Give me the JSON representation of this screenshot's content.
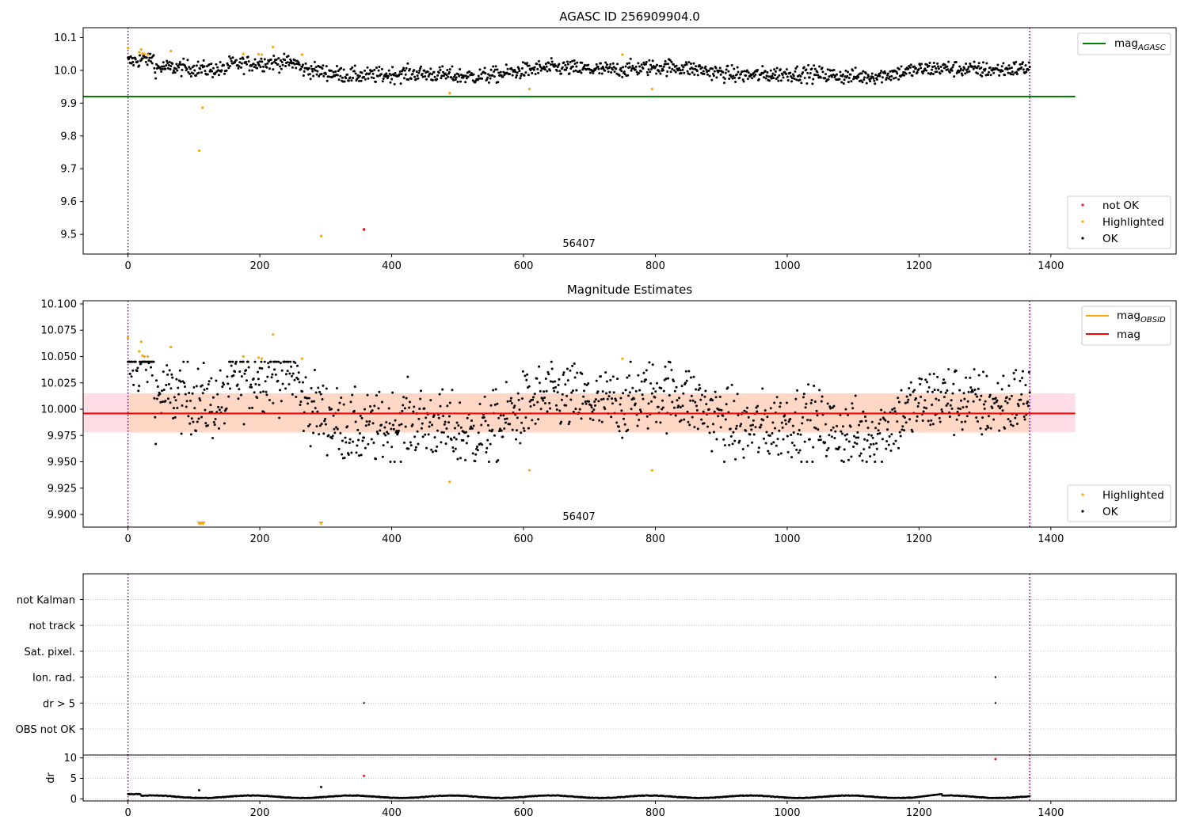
{
  "colors": {
    "ok": "#000000",
    "not_ok": "#e41a1c",
    "highlighted": "#ffa500",
    "mag_agasc": "#008000",
    "mag": "#ff0000",
    "mag_obsid": "#ffa500",
    "band_inner": "#ffd7c4",
    "band_outer": "#ffdde4",
    "vline": "#800080",
    "grid": "#b0b0b0"
  },
  "chart_data": [
    {
      "type": "scatter",
      "title": "AGASC ID 256909904.0",
      "annotation": "56407",
      "xlim": [
        -68,
        1590
      ],
      "ylim": [
        9.44,
        10.13
      ],
      "xticks": [
        0,
        200,
        400,
        600,
        800,
        1000,
        1200,
        1400
      ],
      "yticks": [
        9.5,
        9.6,
        9.7,
        9.8,
        9.9,
        10.0,
        10.1
      ],
      "yticklabels": [
        "9.5",
        "9.6",
        "9.7",
        "9.8",
        "9.9",
        "10.0",
        "10.1"
      ],
      "vlines": [
        0,
        1368
      ],
      "lines": [
        {
          "name": "mag",
          "name_sub": "AGASC",
          "y": 9.92,
          "x": [
            -68,
            1437
          ],
          "color": "#008000"
        }
      ],
      "scatter_legend": [
        {
          "name": "not OK",
          "color": "#e41a1c"
        },
        {
          "name": "Highlighted",
          "color": "#ffa500"
        },
        {
          "name": "OK",
          "color": "#000000"
        }
      ],
      "series_summary": {
        "ok_x_range": [
          0,
          1368
        ],
        "ok_y_center": 10.0,
        "ok_y_spread": 0.04,
        "ok_count_approx": 1300
      },
      "highlighted_points": [
        {
          "x": 0,
          "y": 10.068
        },
        {
          "x": 17,
          "y": 10.055
        },
        {
          "x": 20,
          "y": 10.064
        },
        {
          "x": 22,
          "y": 10.051
        },
        {
          "x": 25,
          "y": 10.05
        },
        {
          "x": 30,
          "y": 10.048
        },
        {
          "x": 65,
          "y": 10.059
        },
        {
          "x": 108,
          "y": 9.755
        },
        {
          "x": 113,
          "y": 9.886
        },
        {
          "x": 175,
          "y": 10.05
        },
        {
          "x": 198,
          "y": 10.049
        },
        {
          "x": 203,
          "y": 10.048
        },
        {
          "x": 220,
          "y": 10.071
        },
        {
          "x": 264,
          "y": 10.048
        },
        {
          "x": 293,
          "y": 9.495
        },
        {
          "x": 488,
          "y": 9.931
        },
        {
          "x": 609,
          "y": 9.943
        },
        {
          "x": 750,
          "y": 10.048
        },
        {
          "x": 795,
          "y": 9.943
        }
      ],
      "not_ok_points": [
        {
          "x": 358,
          "y": 9.515
        }
      ]
    },
    {
      "type": "scatter",
      "title": "Magnitude Estimates",
      "annotation": "56407",
      "xlim": [
        -68,
        1590
      ],
      "ylim": [
        9.888,
        10.103
      ],
      "xticks": [
        0,
        200,
        400,
        600,
        800,
        1000,
        1200,
        1400
      ],
      "yticks": [
        9.9,
        9.925,
        9.95,
        9.975,
        10.0,
        10.025,
        10.05,
        10.075,
        10.1
      ],
      "yticklabels": [
        "9.900",
        "9.925",
        "9.950",
        "9.975",
        "10.000",
        "10.025",
        "10.050",
        "10.075",
        "10.100"
      ],
      "vlines": [
        0,
        1368
      ],
      "mag_line": {
        "name": "mag",
        "y": 9.996,
        "x": [
          -68,
          1437
        ]
      },
      "mag_obsid_line": {
        "name": "mag",
        "name_sub": "OBSID"
      },
      "band_outer": {
        "y": [
          9.978,
          10.015
        ],
        "x": [
          -68,
          1437
        ]
      },
      "band_inner": {
        "y": [
          9.978,
          10.015
        ],
        "x": [
          0,
          1368
        ]
      },
      "scatter_legend": [
        {
          "name": "Highlighted",
          "color": "#ffa500"
        },
        {
          "name": "OK",
          "color": "#000000"
        }
      ],
      "series_summary": {
        "ok_x_range": [
          0,
          1368
        ],
        "ok_y_center": 9.996,
        "ok_y_spread": 0.04
      },
      "highlighted_points": [
        {
          "x": 0,
          "y": 10.068
        },
        {
          "x": 17,
          "y": 10.055
        },
        {
          "x": 20,
          "y": 10.064
        },
        {
          "x": 22,
          "y": 10.051
        },
        {
          "x": 25,
          "y": 10.05
        },
        {
          "x": 30,
          "y": 10.05
        },
        {
          "x": 65,
          "y": 10.059
        },
        {
          "x": 175,
          "y": 10.05
        },
        {
          "x": 198,
          "y": 10.049
        },
        {
          "x": 203,
          "y": 10.048
        },
        {
          "x": 220,
          "y": 10.071
        },
        {
          "x": 264,
          "y": 10.048
        },
        {
          "x": 488,
          "y": 9.931
        },
        {
          "x": 609,
          "y": 9.942
        },
        {
          "x": 750,
          "y": 10.048
        },
        {
          "x": 795,
          "y": 9.942
        }
      ],
      "off_axis_markers": [
        {
          "x": 108
        },
        {
          "x": 111
        },
        {
          "x": 114
        },
        {
          "x": 293
        }
      ]
    },
    {
      "type": "scatter",
      "title": "",
      "xlim": [
        -68,
        1590
      ],
      "categories": [
        "OBS not OK",
        "dr > 5",
        "Ion. rad.",
        "Sat. pixel.",
        "not track",
        "not Kalman"
      ],
      "vlines": [
        0,
        1368
      ],
      "flag_points": [
        {
          "category": "dr > 5",
          "x": 358
        },
        {
          "category": "dr > 5",
          "x": 1316
        },
        {
          "category": "Ion. rad.",
          "x": 1316
        }
      ]
    },
    {
      "type": "scatter",
      "title": "",
      "ylabel": "dr",
      "xlim": [
        -68,
        1590
      ],
      "ylim": [
        -0.5,
        10.7
      ],
      "xticks": [
        0,
        200,
        400,
        600,
        800,
        1000,
        1200,
        1400
      ],
      "yticks": [
        0,
        5,
        10
      ],
      "yticklabels": [
        "0",
        "5",
        "10"
      ],
      "vlines": [
        0,
        1368
      ],
      "series_summary": {
        "ok_x_range": [
          0,
          1368
        ],
        "ok_y_range": [
          0.2,
          1.3
        ]
      },
      "points": [
        {
          "x": 108,
          "y": 2.1,
          "color": "#000000"
        },
        {
          "x": 293,
          "y": 2.9,
          "color": "#000000"
        },
        {
          "x": 358,
          "y": 5.6,
          "color": "#e41a1c"
        },
        {
          "x": 1316,
          "y": 9.7,
          "color": "#e41a1c"
        }
      ]
    }
  ]
}
